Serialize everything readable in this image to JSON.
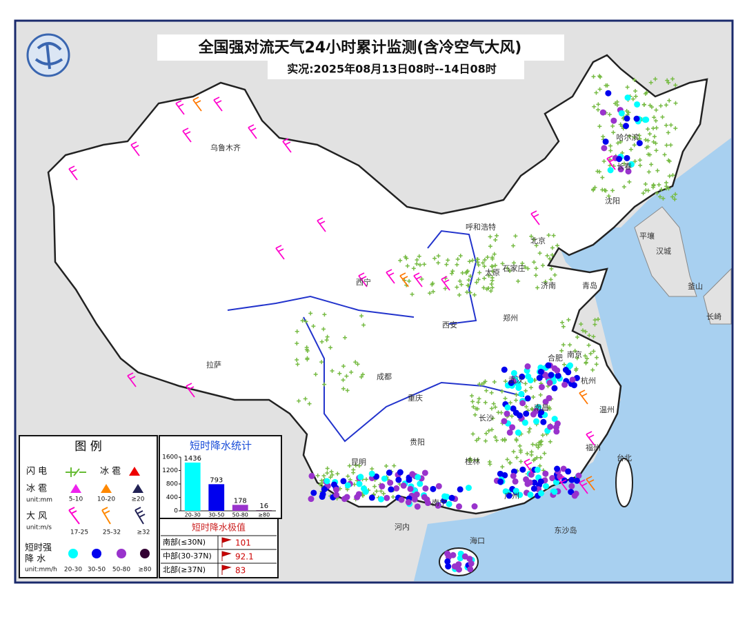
{
  "header": {
    "title": "全国强对流天气24小时累计监测(含冷空气大风)",
    "subtitle": "实况:2025年08月13日08时--14日08时"
  },
  "map_labels": [
    "乌鲁木齐",
    "拉萨",
    "西宁",
    "呼和浩特",
    "北京",
    "沈阳",
    "长春",
    "哈尔滨",
    "太原",
    "石家庄",
    "济南",
    "青岛",
    "郑州",
    "西安",
    "成都",
    "重庆",
    "武汉",
    "合肥",
    "南京",
    "长沙",
    "南昌",
    "贵阳",
    "昆明",
    "南宁",
    "广州",
    "桂林",
    "福州",
    "杭州",
    "温州",
    "台北",
    "海口",
    "河内",
    "东沙岛",
    "平壤",
    "汉城",
    "釜山",
    "长崎"
  ],
  "legend": {
    "title": "图 例",
    "lightning": "闪 电",
    "hail": "冰 雹",
    "hail_size": {
      "name": "冰 雹",
      "unit": "unit:mm",
      "levels": [
        "5-10",
        "10-20",
        "≥20"
      ]
    },
    "wind": {
      "name": "大 风",
      "unit": "unit:m/s",
      "levels": [
        "17-25",
        "25-32",
        "≥32"
      ]
    },
    "rain": {
      "name": [
        "短时强",
        "降 水"
      ],
      "unit": "unit:mm/h",
      "levels": [
        "20-30",
        "30-50",
        "50-80",
        "≥80"
      ]
    }
  },
  "chart_data": {
    "type": "bar",
    "title": "短时降水统计",
    "categories": [
      "20-30",
      "30-50",
      "50-80",
      "≥80"
    ],
    "values": [
      1436,
      793,
      178,
      16
    ],
    "colors": [
      "#00ffff",
      "#0000ee",
      "#9933cc",
      "#330033"
    ],
    "ylim": [
      0,
      1600
    ],
    "yticks": [
      0,
      400,
      800,
      1200,
      1600
    ]
  },
  "extremes": {
    "title": "短时降水极值",
    "rows": [
      [
        "南部(≤30N)",
        101
      ],
      [
        "中部(30-37N)",
        92.1
      ],
      [
        "北部(≥37N)",
        83
      ]
    ]
  }
}
